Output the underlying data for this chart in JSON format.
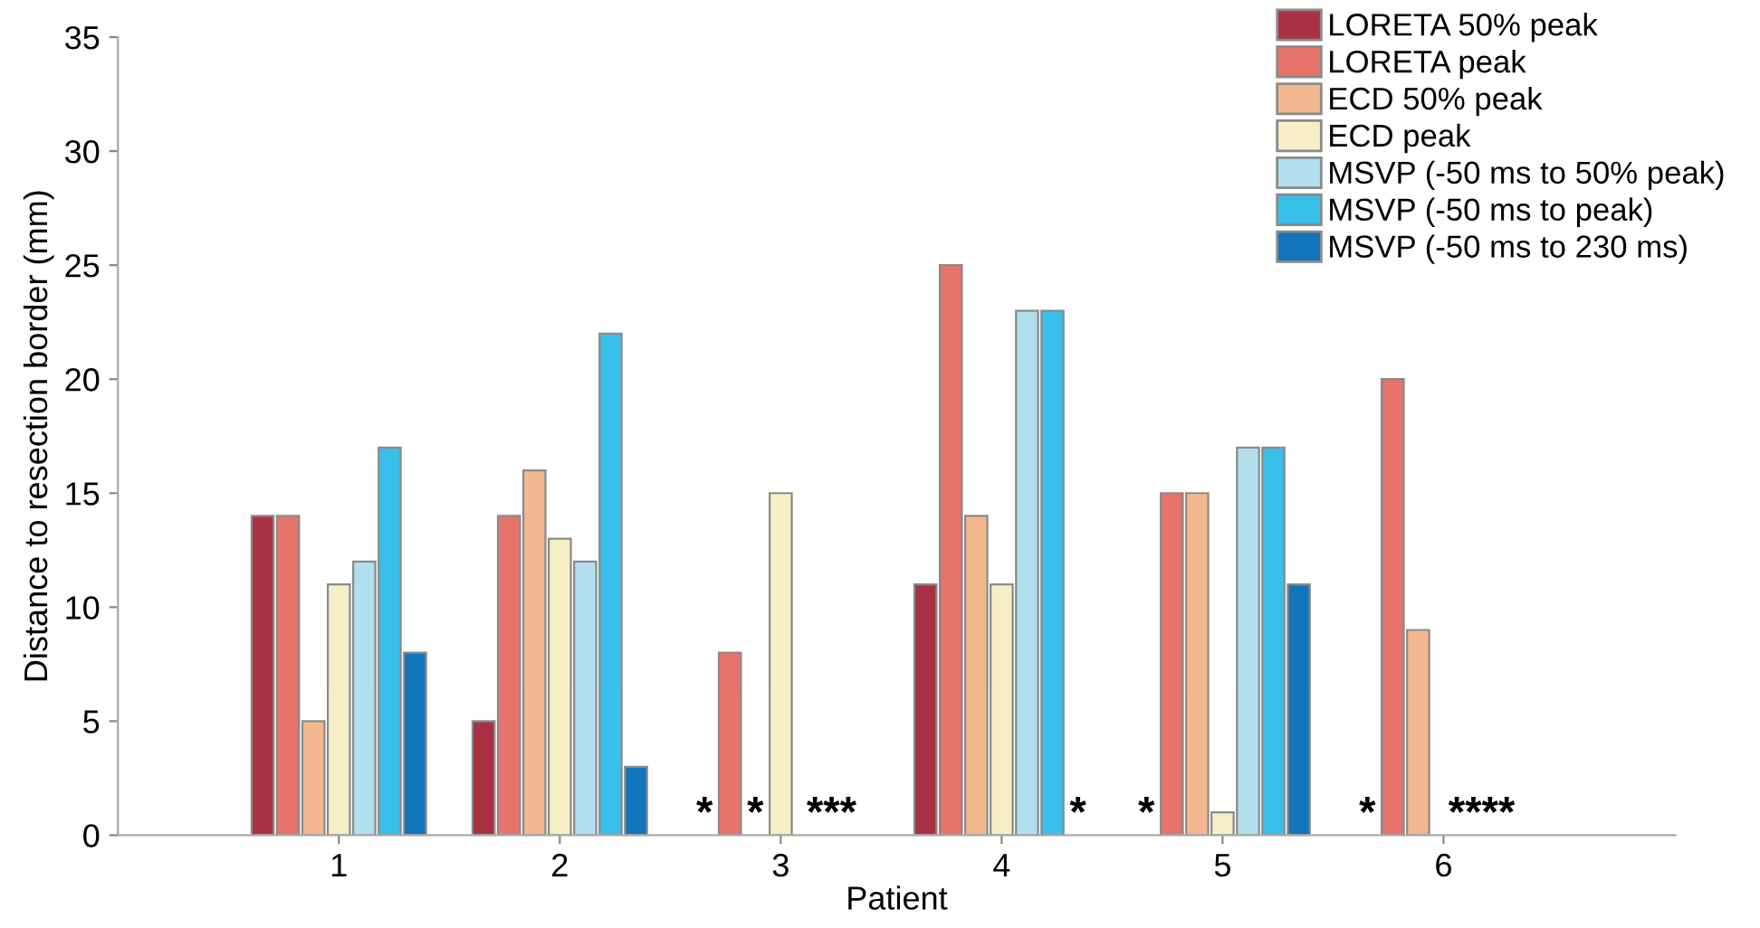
{
  "chart_data": {
    "type": "bar",
    "xlabel": "Patient",
    "ylabel": "Distance to resection border (mm)",
    "categories": [
      "1",
      "2",
      "3",
      "4",
      "5",
      "6"
    ],
    "series": [
      {
        "name": "LORETA 50% peak",
        "color": "#a83244",
        "values": [
          14,
          5,
          null,
          11,
          null,
          null
        ]
      },
      {
        "name": "LORETA peak",
        "color": "#e6746a",
        "values": [
          14,
          14,
          8,
          25,
          15,
          20
        ]
      },
      {
        "name": "ECD 50% peak",
        "color": "#f4b891",
        "values": [
          5,
          16,
          null,
          14,
          15,
          9
        ]
      },
      {
        "name": "ECD peak",
        "color": "#f6efc6",
        "values": [
          11,
          13,
          15,
          11,
          1,
          null
        ]
      },
      {
        "name": "MSVP (-50 ms to 50% peak)",
        "color": "#b1dfee",
        "values": [
          12,
          12,
          null,
          23,
          17,
          null
        ]
      },
      {
        "name": "MSVP (-50 ms to peak)",
        "color": "#38c0ea",
        "values": [
          17,
          22,
          null,
          23,
          17,
          null
        ]
      },
      {
        "name": "MSVP (-50 ms to 230 ms)",
        "color": "#1274ba",
        "values": [
          8,
          3,
          null,
          null,
          11,
          null
        ]
      }
    ],
    "annotations": [
      "*",
      "*",
      "***",
      "*",
      "*",
      "*",
      "****"
    ],
    "ylim": [
      0,
      35
    ],
    "yticks": [
      0,
      5,
      10,
      15,
      20,
      25,
      30,
      35
    ],
    "grid": false,
    "legend": "top right"
  }
}
